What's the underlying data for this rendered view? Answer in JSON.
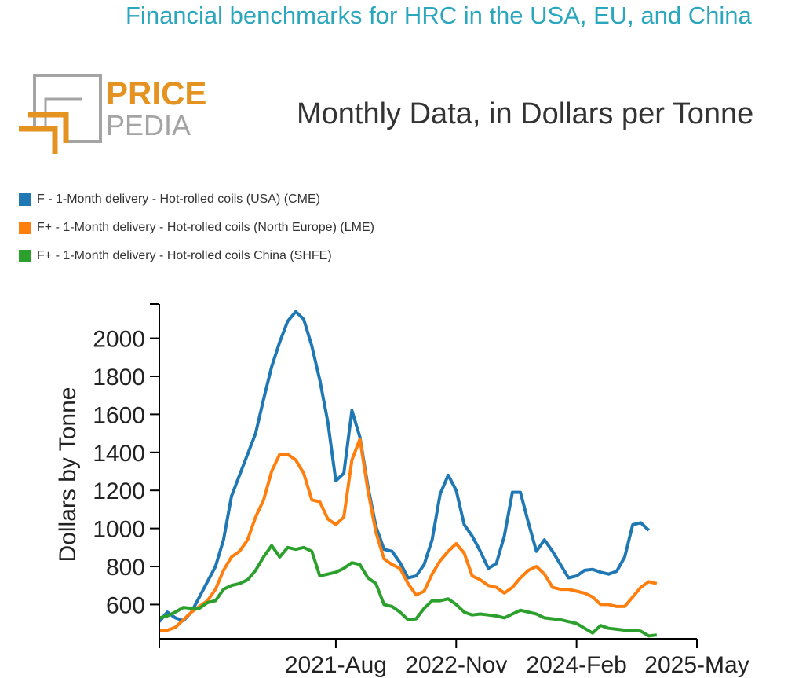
{
  "page": {
    "title": "Financial benchmarks for HRC in the USA, EU, and China"
  },
  "logo": {
    "line1": "PRICE",
    "line2": "PEDIA",
    "colors": {
      "orange": "#e59320",
      "gray": "#a4a4a4"
    }
  },
  "chart_data": {
    "type": "line",
    "title": "Monthly Data, in Dollars per Tonne",
    "ylabel": "Dollars by Tonne",
    "xlabel": "",
    "x_ticks": [
      "2021-Aug",
      "2022-Nov",
      "2024-Feb",
      "2025-May"
    ],
    "x_range": [
      "2019-10",
      "2025-05"
    ],
    "ylim": [
      420,
      2180
    ],
    "y_ticks": [
      600,
      800,
      1000,
      1200,
      1400,
      1600,
      1800,
      2000
    ],
    "grid": false,
    "legend_position": "top-left",
    "series": [
      {
        "name": "F - 1-Month delivery - Hot-rolled coils (USA) (CME)",
        "color": "#1f77b4",
        "points": [
          [
            "2019-10",
            510
          ],
          [
            "2019-11",
            560
          ],
          [
            "2019-12",
            530
          ],
          [
            "2020-01",
            515
          ],
          [
            "2020-02",
            560
          ],
          [
            "2020-03",
            640
          ],
          [
            "2020-04",
            720
          ],
          [
            "2020-05",
            800
          ],
          [
            "2020-06",
            940
          ],
          [
            "2020-07",
            1170
          ],
          [
            "2020-08",
            1280
          ],
          [
            "2020-09",
            1390
          ],
          [
            "2020-10",
            1500
          ],
          [
            "2020-11",
            1680
          ],
          [
            "2020-12",
            1850
          ],
          [
            "2021-01",
            1980
          ],
          [
            "2021-02",
            2090
          ],
          [
            "2021-03",
            2140
          ],
          [
            "2021-04",
            2100
          ],
          [
            "2021-05",
            1960
          ],
          [
            "2021-06",
            1780
          ],
          [
            "2021-07",
            1560
          ],
          [
            "2021-08",
            1250
          ],
          [
            "2021-09",
            1290
          ],
          [
            "2021-10",
            1620
          ],
          [
            "2021-11",
            1480
          ],
          [
            "2021-12",
            1220
          ],
          [
            "2022-01",
            1010
          ],
          [
            "2022-02",
            890
          ],
          [
            "2022-03",
            880
          ],
          [
            "2022-04",
            820
          ],
          [
            "2022-05",
            740
          ],
          [
            "2022-06",
            750
          ],
          [
            "2022-07",
            810
          ],
          [
            "2022-08",
            940
          ],
          [
            "2022-09",
            1180
          ],
          [
            "2022-10",
            1280
          ],
          [
            "2022-11",
            1200
          ],
          [
            "2022-12",
            1020
          ],
          [
            "2023-01",
            960
          ],
          [
            "2023-02",
            880
          ],
          [
            "2023-03",
            790
          ],
          [
            "2023-04",
            815
          ],
          [
            "2023-05",
            960
          ],
          [
            "2023-06",
            1190
          ],
          [
            "2023-07",
            1190
          ],
          [
            "2023-08",
            1030
          ],
          [
            "2023-09",
            880
          ],
          [
            "2023-10",
            940
          ],
          [
            "2023-11",
            880
          ],
          [
            "2023-12",
            810
          ],
          [
            "2024-01",
            740
          ],
          [
            "2024-02",
            750
          ],
          [
            "2024-03",
            780
          ],
          [
            "2024-04",
            785
          ],
          [
            "2024-05",
            770
          ],
          [
            "2024-06",
            760
          ],
          [
            "2024-07",
            775
          ],
          [
            "2024-08",
            850
          ],
          [
            "2024-09",
            1020
          ],
          [
            "2024-10",
            1030
          ],
          [
            "2024-11",
            990
          ]
        ]
      },
      {
        "name": "F+ - 1-Month delivery - Hot-rolled coils (North Europe) (LME)",
        "color": "#ff7f0e",
        "points": [
          [
            "2019-10",
            465
          ],
          [
            "2019-11",
            465
          ],
          [
            "2019-12",
            480
          ],
          [
            "2020-01",
            520
          ],
          [
            "2020-02",
            560
          ],
          [
            "2020-03",
            590
          ],
          [
            "2020-04",
            620
          ],
          [
            "2020-05",
            680
          ],
          [
            "2020-06",
            780
          ],
          [
            "2020-07",
            850
          ],
          [
            "2020-08",
            880
          ],
          [
            "2020-09",
            940
          ],
          [
            "2020-10",
            1060
          ],
          [
            "2020-11",
            1150
          ],
          [
            "2020-12",
            1300
          ],
          [
            "2021-01",
            1390
          ],
          [
            "2021-02",
            1390
          ],
          [
            "2021-03",
            1360
          ],
          [
            "2021-04",
            1290
          ],
          [
            "2021-05",
            1150
          ],
          [
            "2021-06",
            1140
          ],
          [
            "2021-07",
            1050
          ],
          [
            "2021-08",
            1020
          ],
          [
            "2021-09",
            1060
          ],
          [
            "2021-10",
            1360
          ],
          [
            "2021-11",
            1470
          ],
          [
            "2021-12",
            1200
          ],
          [
            "2022-01",
            980
          ],
          [
            "2022-02",
            840
          ],
          [
            "2022-03",
            810
          ],
          [
            "2022-04",
            790
          ],
          [
            "2022-05",
            710
          ],
          [
            "2022-06",
            650
          ],
          [
            "2022-07",
            670
          ],
          [
            "2022-08",
            760
          ],
          [
            "2022-09",
            830
          ],
          [
            "2022-10",
            880
          ],
          [
            "2022-11",
            920
          ],
          [
            "2022-12",
            870
          ],
          [
            "2023-01",
            750
          ],
          [
            "2023-02",
            730
          ],
          [
            "2023-03",
            700
          ],
          [
            "2023-04",
            690
          ],
          [
            "2023-05",
            660
          ],
          [
            "2023-06",
            690
          ],
          [
            "2023-07",
            740
          ],
          [
            "2023-08",
            780
          ],
          [
            "2023-09",
            800
          ],
          [
            "2023-10",
            760
          ],
          [
            "2023-11",
            690
          ],
          [
            "2023-12",
            680
          ],
          [
            "2024-01",
            680
          ],
          [
            "2024-02",
            670
          ],
          [
            "2024-03",
            660
          ],
          [
            "2024-04",
            640
          ],
          [
            "2024-05",
            600
          ],
          [
            "2024-06",
            600
          ],
          [
            "2024-07",
            590
          ],
          [
            "2024-08",
            590
          ],
          [
            "2024-09",
            640
          ],
          [
            "2024-10",
            690
          ],
          [
            "2024-11",
            720
          ],
          [
            "2024-12",
            710
          ]
        ]
      },
      {
        "name": "F+ - 1-Month delivery - Hot-rolled coils China (SHFE)",
        "color": "#2ca02c",
        "points": [
          [
            "2019-10",
            530
          ],
          [
            "2019-11",
            540
          ],
          [
            "2019-12",
            560
          ],
          [
            "2020-01",
            585
          ],
          [
            "2020-02",
            580
          ],
          [
            "2020-03",
            580
          ],
          [
            "2020-04",
            610
          ],
          [
            "2020-05",
            620
          ],
          [
            "2020-06",
            680
          ],
          [
            "2020-07",
            700
          ],
          [
            "2020-08",
            710
          ],
          [
            "2020-09",
            730
          ],
          [
            "2020-10",
            780
          ],
          [
            "2020-11",
            850
          ],
          [
            "2020-12",
            910
          ],
          [
            "2021-01",
            850
          ],
          [
            "2021-02",
            900
          ],
          [
            "2021-03",
            890
          ],
          [
            "2021-04",
            900
          ],
          [
            "2021-05",
            880
          ],
          [
            "2021-06",
            750
          ],
          [
            "2021-07",
            760
          ],
          [
            "2021-08",
            770
          ],
          [
            "2021-09",
            790
          ],
          [
            "2021-10",
            820
          ],
          [
            "2021-11",
            810
          ],
          [
            "2021-12",
            740
          ],
          [
            "2022-01",
            710
          ],
          [
            "2022-02",
            600
          ],
          [
            "2022-03",
            590
          ],
          [
            "2022-04",
            560
          ],
          [
            "2022-05",
            520
          ],
          [
            "2022-06",
            525
          ],
          [
            "2022-07",
            580
          ],
          [
            "2022-08",
            620
          ],
          [
            "2022-09",
            620
          ],
          [
            "2022-10",
            630
          ],
          [
            "2022-11",
            600
          ],
          [
            "2022-12",
            560
          ],
          [
            "2023-01",
            545
          ],
          [
            "2023-02",
            550
          ],
          [
            "2023-03",
            545
          ],
          [
            "2023-04",
            540
          ],
          [
            "2023-05",
            530
          ],
          [
            "2023-06",
            550
          ],
          [
            "2023-07",
            570
          ],
          [
            "2023-08",
            560
          ],
          [
            "2023-09",
            550
          ],
          [
            "2023-10",
            530
          ],
          [
            "2023-11",
            525
          ],
          [
            "2023-12",
            520
          ],
          [
            "2024-01",
            510
          ],
          [
            "2024-02",
            500
          ],
          [
            "2024-03",
            475
          ],
          [
            "2024-04",
            450
          ],
          [
            "2024-05",
            490
          ],
          [
            "2024-06",
            475
          ],
          [
            "2024-07",
            470
          ],
          [
            "2024-08",
            465
          ],
          [
            "2024-09",
            465
          ],
          [
            "2024-10",
            460
          ],
          [
            "2024-11",
            435
          ],
          [
            "2024-12",
            440
          ]
        ]
      }
    ]
  }
}
